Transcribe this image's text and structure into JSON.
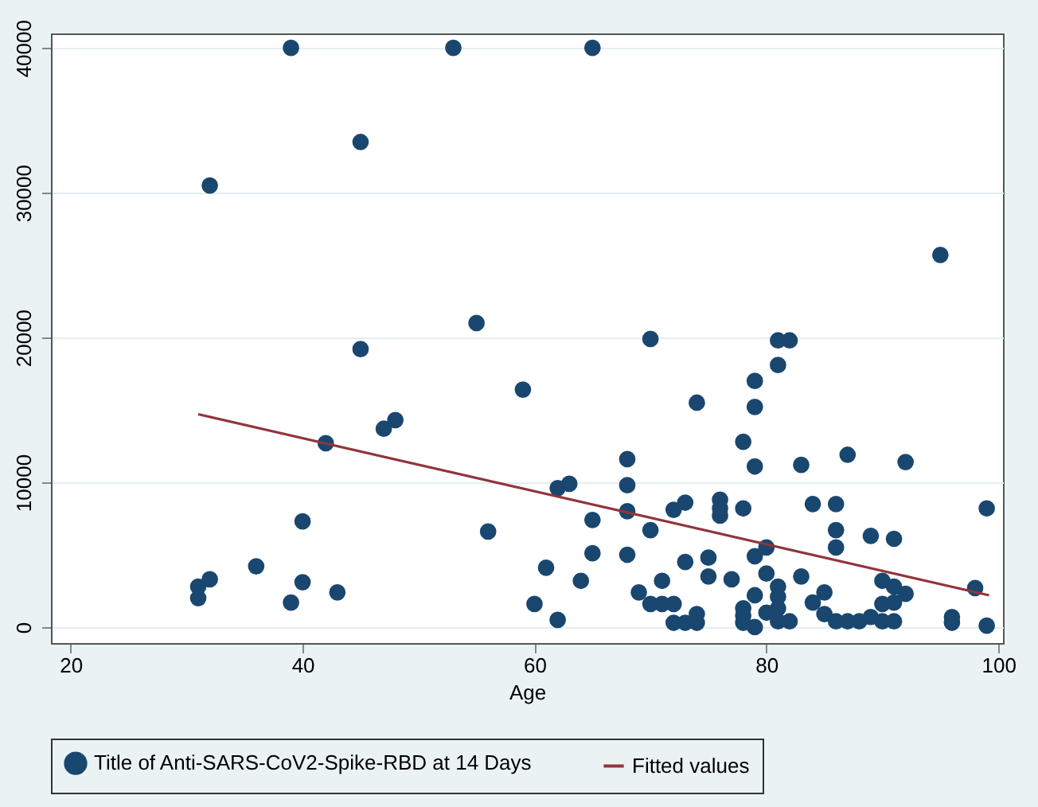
{
  "chart_data": {
    "type": "scatter",
    "xlabel": "Age",
    "xlim": [
      18.3,
      100.4
    ],
    "xticks": [
      20,
      40,
      60,
      80,
      100
    ],
    "ylim": [
      -1100,
      41000
    ],
    "yticks": [
      0,
      10000,
      20000,
      30000,
      40000
    ],
    "grid": "y",
    "legend": "bottom",
    "series": [
      {
        "name": "Title of Anti-SARS-CoV2-Spike-RBD at 14 Days",
        "color": "#1a476f",
        "marker": "circle",
        "x": [
          31,
          31,
          32,
          32,
          36,
          39,
          39,
          40,
          40,
          42,
          43,
          45,
          45,
          47,
          48,
          53,
          55,
          56,
          59,
          60,
          61,
          62,
          62,
          63,
          64,
          65,
          65,
          65,
          68,
          68,
          68,
          68,
          69,
          70,
          70,
          70,
          71,
          71,
          72,
          72,
          72,
          73,
          73,
          73,
          74,
          74,
          74,
          75,
          75,
          76,
          76,
          76,
          77,
          78,
          78,
          78,
          78,
          78,
          79,
          79,
          79,
          79,
          79,
          79,
          80,
          80,
          80,
          81,
          81,
          81,
          81,
          81,
          81,
          82,
          82,
          83,
          83,
          84,
          84,
          85,
          85,
          86,
          86,
          86,
          86,
          87,
          88,
          87,
          89,
          89,
          90,
          90,
          90,
          91,
          91,
          91,
          91,
          92,
          92,
          95,
          96,
          96,
          98,
          99,
          99
        ],
        "values": [
          2800,
          2000,
          3300,
          30500,
          4200,
          1700,
          40000,
          7300,
          3100,
          12700,
          2400,
          19200,
          33500,
          13700,
          14300,
          40000,
          21000,
          6600,
          16400,
          1600,
          4100,
          500,
          9600,
          9900,
          3200,
          7400,
          5100,
          40000,
          11600,
          9800,
          8000,
          5000,
          2400,
          6700,
          1600,
          19900,
          1600,
          3200,
          8100,
          1600,
          300,
          8600,
          4500,
          300,
          900,
          300,
          15500,
          4800,
          3500,
          8800,
          8200,
          7700,
          3300,
          12800,
          8200,
          1300,
          800,
          300,
          11100,
          4900,
          2200,
          0,
          17000,
          15200,
          5500,
          3700,
          1000,
          2800,
          2100,
          1300,
          400,
          19800,
          18100,
          400,
          19800,
          11200,
          3500,
          8500,
          1700,
          2400,
          900,
          8500,
          6700,
          5500,
          400,
          400,
          400,
          11900,
          6300,
          700,
          3200,
          1600,
          400,
          6100,
          2800,
          1700,
          400,
          11400,
          2300,
          25700,
          700,
          300,
          2700,
          8200,
          100
        ]
      },
      {
        "name": "Fitted values",
        "color": "#90353b",
        "type": "line",
        "line_style": "solid",
        "x": [
          31,
          99.2
        ],
        "values": [
          14700,
          2200
        ]
      }
    ]
  }
}
